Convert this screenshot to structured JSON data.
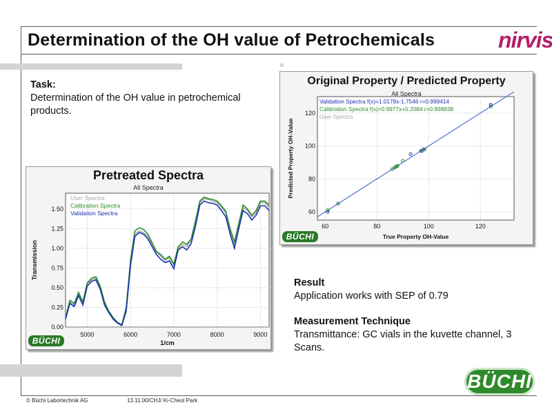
{
  "header": {
    "title": "Determination of the OH value of Petrochemicals",
    "logo_text": "nirvis"
  },
  "task": {
    "heading": "Task:",
    "text": "Determination of the OH value in petrochemical products."
  },
  "result": {
    "heading": "Result",
    "text": "Application works with SEP of 0.79",
    "technique_heading": "Measurement Technique",
    "technique_text": "Transmittance: GC vials in the kuvette channel, 3 Scans."
  },
  "footer": {
    "copyright": "© Büchi Labortechnik AG",
    "ref": "13.11.00/CHJ/ Ki-Cheol Park",
    "logo_text": "BÜCHI"
  },
  "colors": {
    "brand_green": "#2f8a2c",
    "nirvis_magenta": "#b31f6a",
    "validation": "#1a2fb0",
    "calibration": "#2a8a2a",
    "user": "#a8a8a8"
  },
  "chart_data": [
    {
      "type": "line",
      "title": "Pretreated Spectra",
      "subtitle": "All Spectra",
      "xlabel": "1/cm",
      "ylabel": "Transmission",
      "xlim": [
        4500,
        9200
      ],
      "ylim": [
        0.0,
        1.7
      ],
      "xticks": [
        5000,
        6000,
        7000,
        8000,
        9000
      ],
      "yticks": [
        "0.00",
        "0.25",
        "0.50",
        "0.75",
        "1.00",
        "1.25",
        "1.50"
      ],
      "grid": true,
      "legend": "top-left",
      "logo_text": "BÜCHI",
      "x": [
        4500,
        4600,
        4700,
        4800,
        4900,
        5000,
        5100,
        5200,
        5300,
        5400,
        5500,
        5600,
        5700,
        5800,
        5900,
        6000,
        6100,
        6200,
        6300,
        6400,
        6500,
        6600,
        6700,
        6800,
        6900,
        7000,
        7100,
        7200,
        7300,
        7400,
        7500,
        7600,
        7700,
        7800,
        7900,
        8000,
        8100,
        8200,
        8300,
        8400,
        8500,
        8600,
        8700,
        8800,
        8900,
        9000,
        9100,
        9200
      ],
      "series": [
        {
          "name": "User Spectra",
          "values": [
            0.1,
            0.32,
            0.28,
            0.42,
            0.3,
            0.55,
            0.6,
            0.62,
            0.5,
            0.3,
            0.2,
            0.12,
            0.06,
            0.02,
            0.22,
            0.8,
            1.18,
            1.22,
            1.2,
            1.15,
            1.05,
            0.95,
            0.9,
            0.85,
            0.88,
            0.78,
            1.0,
            1.05,
            1.02,
            1.1,
            1.32,
            1.58,
            1.63,
            1.62,
            1.6,
            1.58,
            1.52,
            1.45,
            1.22,
            1.05,
            1.3,
            1.52,
            1.48,
            1.4,
            1.45,
            1.58,
            1.58,
            1.52
          ]
        },
        {
          "name": "Calibration Spectra",
          "values": [
            0.12,
            0.34,
            0.3,
            0.44,
            0.32,
            0.56,
            0.62,
            0.64,
            0.52,
            0.32,
            0.2,
            0.12,
            0.06,
            0.03,
            0.25,
            0.85,
            1.22,
            1.26,
            1.24,
            1.18,
            1.07,
            0.96,
            0.92,
            0.86,
            0.9,
            0.8,
            1.02,
            1.08,
            1.05,
            1.12,
            1.35,
            1.6,
            1.65,
            1.63,
            1.62,
            1.6,
            1.54,
            1.47,
            1.25,
            1.08,
            1.32,
            1.55,
            1.5,
            1.42,
            1.48,
            1.6,
            1.6,
            1.55
          ]
        },
        {
          "name": "Validation Spectra",
          "values": [
            0.1,
            0.3,
            0.26,
            0.4,
            0.28,
            0.52,
            0.58,
            0.6,
            0.48,
            0.28,
            0.18,
            0.1,
            0.05,
            0.02,
            0.2,
            0.78,
            1.15,
            1.2,
            1.18,
            1.12,
            1.02,
            0.92,
            0.86,
            0.82,
            0.84,
            0.74,
            0.98,
            1.02,
            0.98,
            1.06,
            1.28,
            1.55,
            1.6,
            1.58,
            1.57,
            1.55,
            1.48,
            1.4,
            1.18,
            1.0,
            1.25,
            1.48,
            1.44,
            1.36,
            1.42,
            1.54,
            1.54,
            1.48
          ]
        }
      ]
    },
    {
      "type": "scatter",
      "title": "Original Property / Predicted Property",
      "subtitle": "All Spectra",
      "xlabel": "True Property OH-Value",
      "ylabel": "Predicted Property OH-Value",
      "xlim": [
        57,
        133
      ],
      "ylim": [
        55,
        130
      ],
      "xticks": [
        60,
        80,
        100,
        120
      ],
      "yticks": [
        60,
        80,
        100,
        120
      ],
      "grid": true,
      "legend": "top-left",
      "logo_text": "BÜCHI",
      "legend_entries": [
        {
          "name": "Validation Spectra f(x)=1.0178x-1.7546  r=0.999414",
          "color": "#1a2fb0"
        },
        {
          "name": "Calibration Spectra f(x)=0.9977x+0.2084  r=0.998838",
          "color": "#2a8a2a"
        },
        {
          "name": "User Spectra",
          "color": "#a8a8a8"
        }
      ],
      "series": [
        {
          "name": "Validation Spectra",
          "x": [
            61,
            65,
            87,
            93,
            97,
            98,
            124
          ],
          "y": [
            60,
            65,
            87,
            95,
            97,
            98,
            125
          ]
        },
        {
          "name": "Calibration Spectra",
          "x": [
            61,
            65,
            86,
            87,
            87.5,
            88,
            90,
            97.5,
            98.5,
            124
          ],
          "y": [
            61,
            65,
            86,
            87,
            87.5,
            88,
            91,
            97,
            98,
            124
          ]
        }
      ],
      "fit_line": {
        "x": [
          57,
          133
        ],
        "slope": 1.0,
        "intercept": 0.0
      }
    }
  ]
}
